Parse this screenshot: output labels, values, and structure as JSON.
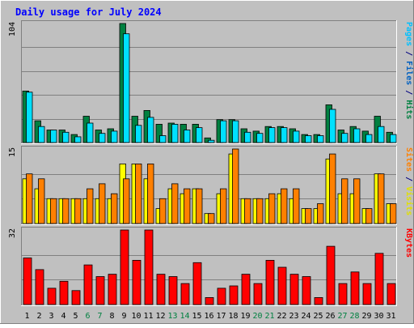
{
  "chart_data": {
    "type": "bar",
    "title": "Daily usage for July 2024",
    "categories": [
      "1",
      "2",
      "3",
      "4",
      "5",
      "6",
      "7",
      "8",
      "9",
      "10",
      "11",
      "12",
      "13",
      "14",
      "15",
      "16",
      "17",
      "18",
      "19",
      "20",
      "21",
      "22",
      "23",
      "24",
      "25",
      "26",
      "27",
      "28",
      "29",
      "30",
      "31"
    ],
    "weekend_days": [
      "6",
      "7",
      "13",
      "14",
      "20",
      "21",
      "27",
      "28"
    ],
    "grid": true,
    "colors": {
      "background": "#c0c0c0",
      "title": "#0000ff",
      "hits": "#008040",
      "files": "#00c0ff",
      "pages": "#00e0ff",
      "visits": "#ffff00",
      "sites": "#ff8000",
      "kbytes": "#ff0000",
      "weekend_label": "#008040",
      "weekday_label": "#000000"
    },
    "panels": [
      {
        "id": "top",
        "y_max_label": "104",
        "ylim": [
          0,
          104
        ],
        "side_labels": [
          {
            "text": "Pages",
            "color": "#00c0ff"
          },
          {
            "text": " / ",
            "color": "#000080"
          },
          {
            "text": "Files",
            "color": "#0060c0"
          },
          {
            "text": " / ",
            "color": "#000080"
          },
          {
            "text": "Hits",
            "color": "#008040"
          }
        ],
        "series": [
          {
            "name": "Hits",
            "color": "#008040",
            "values": [
              45,
              19,
              11,
              11,
              7,
              23,
              11,
              12,
              104,
              23,
              28,
              16,
              17,
              16,
              16,
              4,
              20,
              20,
              12,
              10,
              14,
              14,
              12,
              7,
              7,
              33,
              11,
              14,
              10,
              23,
              9
            ]
          },
          {
            "name": "Files",
            "color": "#00e0ff",
            "values": [
              44,
              14,
              11,
              9,
              5,
              17,
              8,
              10,
              95,
              15,
              22,
              6,
              16,
              11,
              13,
              2,
              19,
              19,
              9,
              8,
              13,
              13,
              10,
              6,
              6,
              29,
              8,
              12,
              7,
              14,
              7
            ]
          }
        ]
      },
      {
        "id": "middle",
        "y_max_label": "15",
        "ylim": [
          0,
          15
        ],
        "side_labels": [
          {
            "text": "Sites",
            "color": "#ff8000"
          },
          {
            "text": " / ",
            "color": "#000080"
          },
          {
            "text": "Visits",
            "color": "#e0e000"
          }
        ],
        "series": [
          {
            "name": "Visits",
            "color": "#ffff00",
            "values": [
              9,
              7,
              5,
              5,
              5,
              5,
              5,
              5,
              12,
              12,
              9,
              3,
              7,
              6,
              7,
              2,
              6,
              14,
              5,
              5,
              5,
              6,
              5,
              3,
              3,
              13,
              6,
              6,
              3,
              10,
              4
            ]
          },
          {
            "name": "Sites",
            "color": "#ff8000",
            "values": [
              10,
              9,
              5,
              5,
              5,
              7,
              8,
              6,
              9,
              12,
              12,
              5,
              8,
              7,
              7,
              2,
              7,
              15,
              5,
              5,
              6,
              7,
              7,
              3,
              4,
              14,
              9,
              9,
              3,
              10,
              4
            ]
          }
        ]
      },
      {
        "id": "bottom",
        "y_max_label": "32",
        "ylim": [
          0,
          32
        ],
        "side_labels": [
          {
            "text": "KBytes",
            "color": "#ff0000"
          }
        ],
        "series": [
          {
            "name": "KBytes",
            "color": "#ff0000",
            "values": [
              20,
              15,
              7,
              10,
              6,
              17,
              12,
              13,
              32,
              19,
              32,
              13,
              12,
              9,
              18,
              3,
              7,
              8,
              13,
              9,
              19,
              16,
              13,
              12,
              3,
              25,
              9,
              14,
              9,
              22,
              9
            ]
          }
        ]
      }
    ]
  }
}
